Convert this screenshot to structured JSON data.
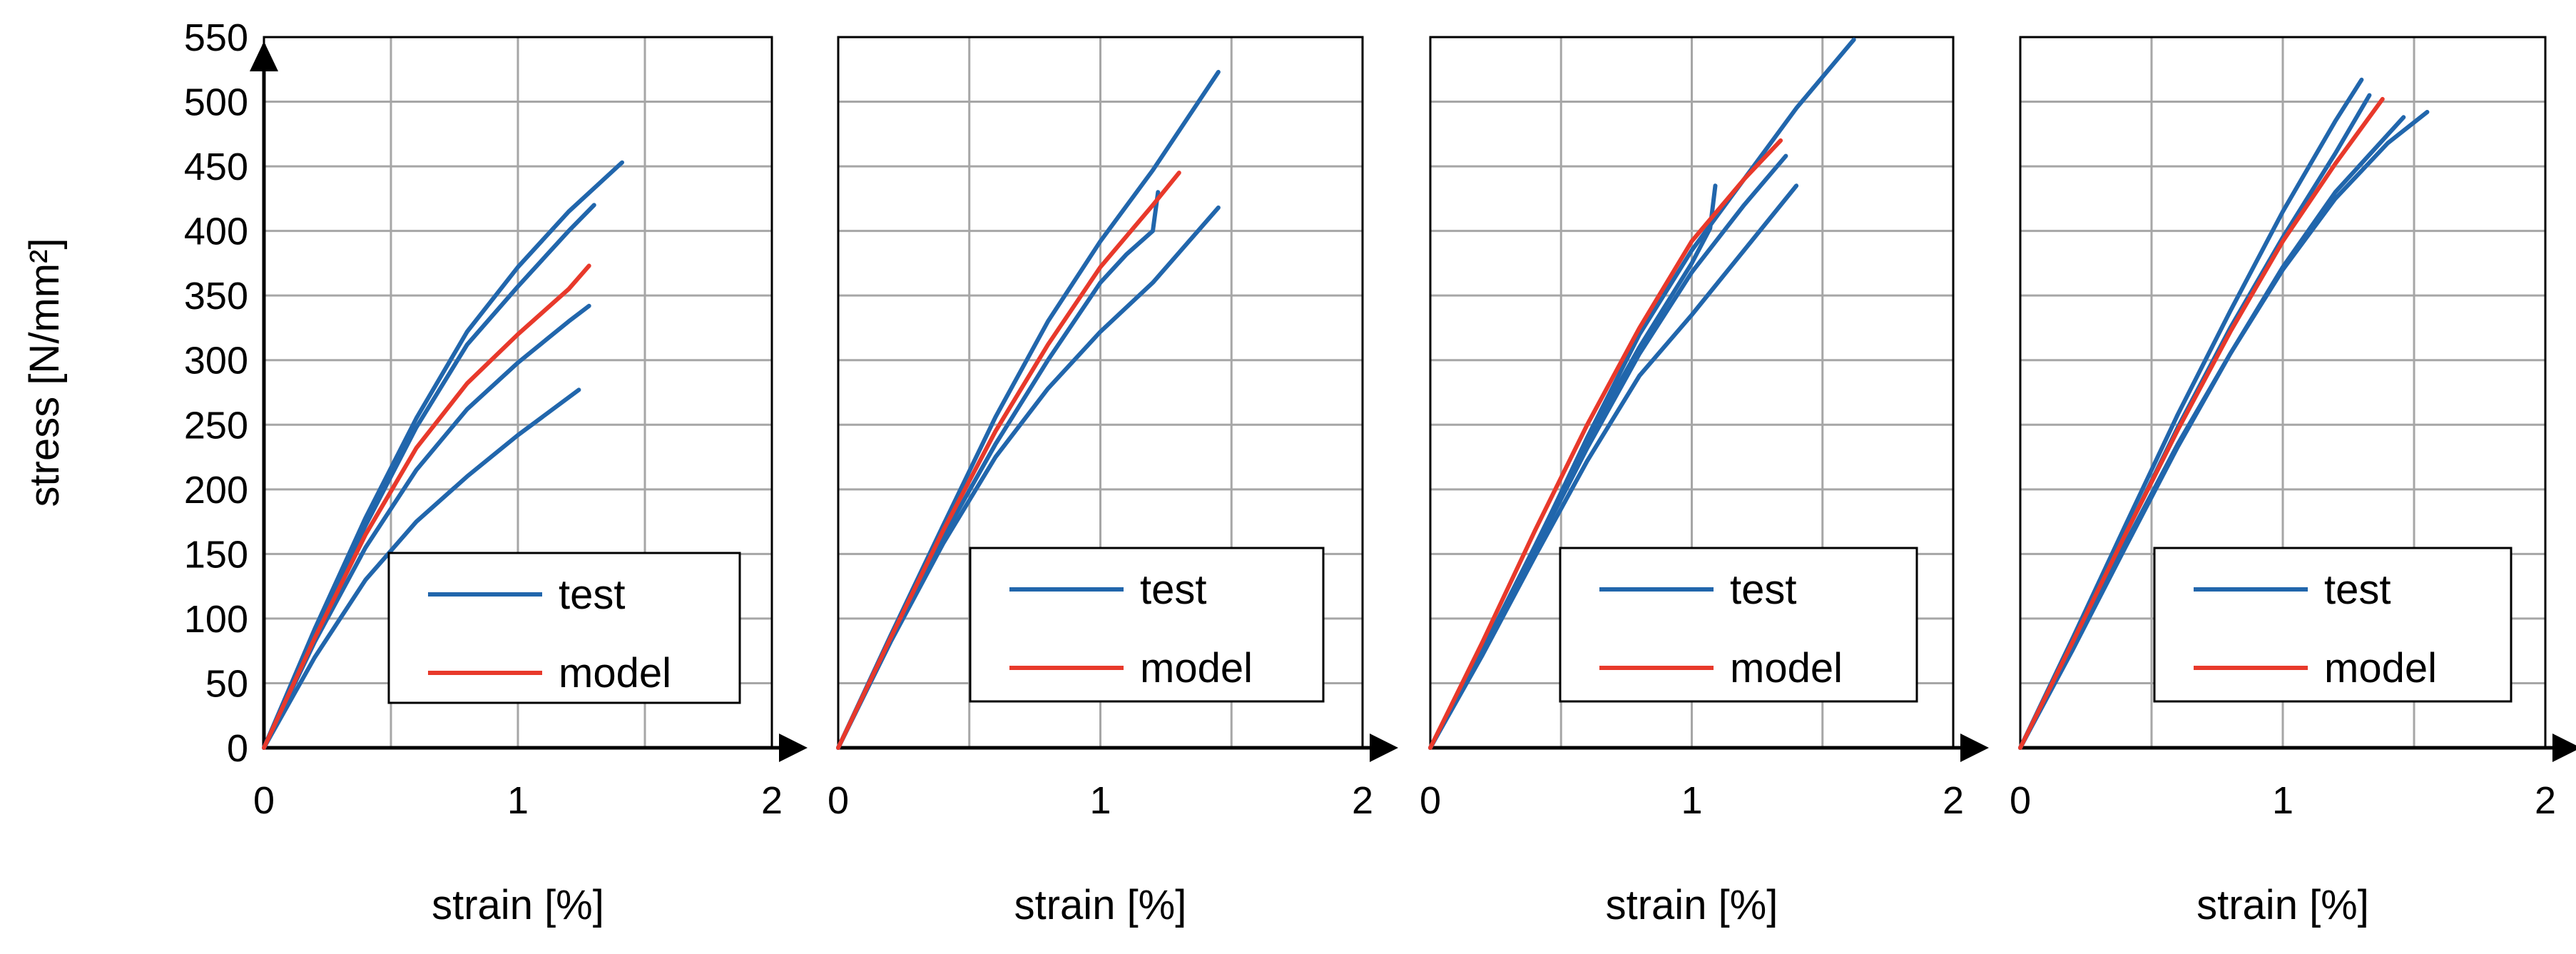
{
  "figure": {
    "ylabel": "stress [N/mm²]",
    "colors": {
      "test": "#2166ac",
      "model": "#e8392b"
    }
  },
  "chart_data": [
    {
      "type": "line",
      "xlabel": "strain [%]",
      "ylabel": "stress [N/mm²]",
      "xlim": [
        0,
        2
      ],
      "ylim": [
        0,
        550
      ],
      "x_ticks": [
        "0",
        "1",
        "2"
      ],
      "y_ticks": [
        "0",
        "50",
        "100",
        "150",
        "200",
        "250",
        "300",
        "350",
        "400",
        "450",
        "500",
        "550"
      ],
      "legend": [
        "test",
        "model"
      ],
      "series": [
        {
          "name": "test",
          "x": [
            0,
            0.2,
            0.4,
            0.6,
            0.8,
            1.0,
            1.2,
            1.41
          ],
          "y": [
            0,
            92,
            178,
            255,
            322,
            372,
            415,
            453
          ]
        },
        {
          "name": "test",
          "x": [
            0,
            0.2,
            0.4,
            0.6,
            0.8,
            1.0,
            1.2,
            1.3
          ],
          "y": [
            0,
            90,
            172,
            248,
            312,
            357,
            400,
            420
          ]
        },
        {
          "name": "test",
          "x": [
            0,
            0.2,
            0.4,
            0.6,
            0.8,
            1.0,
            1.2,
            1.28
          ],
          "y": [
            0,
            82,
            155,
            215,
            262,
            298,
            330,
            342
          ]
        },
        {
          "name": "test",
          "x": [
            0,
            0.2,
            0.4,
            0.6,
            0.8,
            1.0,
            1.24
          ],
          "y": [
            0,
            70,
            130,
            175,
            210,
            242,
            277
          ]
        },
        {
          "name": "model",
          "x": [
            0,
            0.2,
            0.4,
            0.6,
            0.8,
            1.0,
            1.2,
            1.28
          ],
          "y": [
            0,
            85,
            165,
            232,
            282,
            320,
            355,
            373
          ]
        }
      ]
    },
    {
      "type": "line",
      "xlabel": "strain [%]",
      "ylabel": "",
      "xlim": [
        0,
        2
      ],
      "ylim": [
        0,
        550
      ],
      "x_ticks": [
        "0",
        "1",
        "2"
      ],
      "y_ticks": [],
      "legend": [
        "test",
        "model"
      ],
      "series": [
        {
          "name": "test",
          "x": [
            0,
            0.2,
            0.4,
            0.6,
            0.8,
            1.0,
            1.2,
            1.45
          ],
          "y": [
            0,
            87,
            172,
            256,
            330,
            392,
            447,
            523
          ]
        },
        {
          "name": "test",
          "x": [
            0,
            0.2,
            0.4,
            0.6,
            0.8,
            1.0,
            1.2,
            1.45
          ],
          "y": [
            0,
            82,
            158,
            225,
            278,
            322,
            360,
            418
          ]
        },
        {
          "name": "test",
          "x": [
            0,
            0.2,
            0.4,
            0.6,
            0.8,
            1.0,
            1.1,
            1.2,
            1.22
          ],
          "y": [
            0,
            83,
            163,
            235,
            300,
            360,
            382,
            400,
            430
          ]
        },
        {
          "name": "model",
          "x": [
            0,
            0.2,
            0.4,
            0.6,
            0.8,
            1.0,
            1.2,
            1.3
          ],
          "y": [
            0,
            85,
            168,
            245,
            312,
            372,
            420,
            445
          ]
        }
      ]
    },
    {
      "type": "line",
      "xlabel": "strain [%]",
      "ylabel": "",
      "xlim": [
        0,
        2
      ],
      "ylim": [
        0,
        550
      ],
      "x_ticks": [
        "0",
        "1",
        "2"
      ],
      "y_ticks": [],
      "legend": [
        "test",
        "model"
      ],
      "series": [
        {
          "name": "test",
          "x": [
            0,
            0.2,
            0.4,
            0.6,
            0.8,
            1.0,
            1.2,
            1.4,
            1.62
          ],
          "y": [
            0,
            75,
            155,
            240,
            320,
            385,
            440,
            495,
            548
          ]
        },
        {
          "name": "test",
          "x": [
            0,
            0.2,
            0.4,
            0.6,
            0.8,
            1.0,
            1.2,
            1.36
          ],
          "y": [
            0,
            75,
            153,
            232,
            305,
            368,
            420,
            458
          ]
        },
        {
          "name": "test",
          "x": [
            0,
            0.2,
            0.4,
            0.6,
            0.8,
            1.0,
            1.2,
            1.4
          ],
          "y": [
            0,
            72,
            148,
            222,
            288,
            335,
            385,
            435
          ]
        },
        {
          "name": "test",
          "x": [
            0,
            0.2,
            0.4,
            0.6,
            0.8,
            1.0,
            1.07,
            1.09
          ],
          "y": [
            0,
            76,
            156,
            238,
            310,
            375,
            402,
            435
          ]
        },
        {
          "name": "model",
          "x": [
            0,
            0.2,
            0.4,
            0.6,
            0.8,
            1.0,
            1.2,
            1.34
          ],
          "y": [
            0,
            82,
            168,
            250,
            325,
            392,
            440,
            470
          ]
        }
      ]
    },
    {
      "type": "line",
      "xlabel": "strain [%]",
      "ylabel": "",
      "xlim": [
        0,
        2
      ],
      "ylim": [
        0,
        550
      ],
      "x_ticks": [
        "0",
        "1",
        "2"
      ],
      "y_ticks": [],
      "legend": [
        "test",
        "model"
      ],
      "series": [
        {
          "name": "test",
          "x": [
            0,
            0.2,
            0.4,
            0.6,
            0.8,
            1.0,
            1.2,
            1.3
          ],
          "y": [
            0,
            85,
            172,
            258,
            338,
            415,
            485,
            517
          ]
        },
        {
          "name": "test",
          "x": [
            0,
            0.2,
            0.4,
            0.6,
            0.8,
            1.0,
            1.2,
            1.33
          ],
          "y": [
            0,
            82,
            165,
            248,
            325,
            395,
            460,
            505
          ]
        },
        {
          "name": "test",
          "x": [
            0,
            0.2,
            0.4,
            0.6,
            0.8,
            1.0,
            1.2,
            1.4,
            1.55
          ],
          "y": [
            0,
            76,
            155,
            233,
            305,
            370,
            425,
            468,
            492
          ]
        },
        {
          "name": "test",
          "x": [
            0,
            0.2,
            0.4,
            0.6,
            0.8,
            1.0,
            1.2,
            1.46
          ],
          "y": [
            0,
            78,
            158,
            235,
            305,
            372,
            430,
            488
          ]
        },
        {
          "name": "model",
          "x": [
            0,
            0.2,
            0.4,
            0.6,
            0.8,
            1.0,
            1.2,
            1.38
          ],
          "y": [
            0,
            82,
            165,
            246,
            322,
            392,
            452,
            502
          ]
        }
      ]
    }
  ]
}
